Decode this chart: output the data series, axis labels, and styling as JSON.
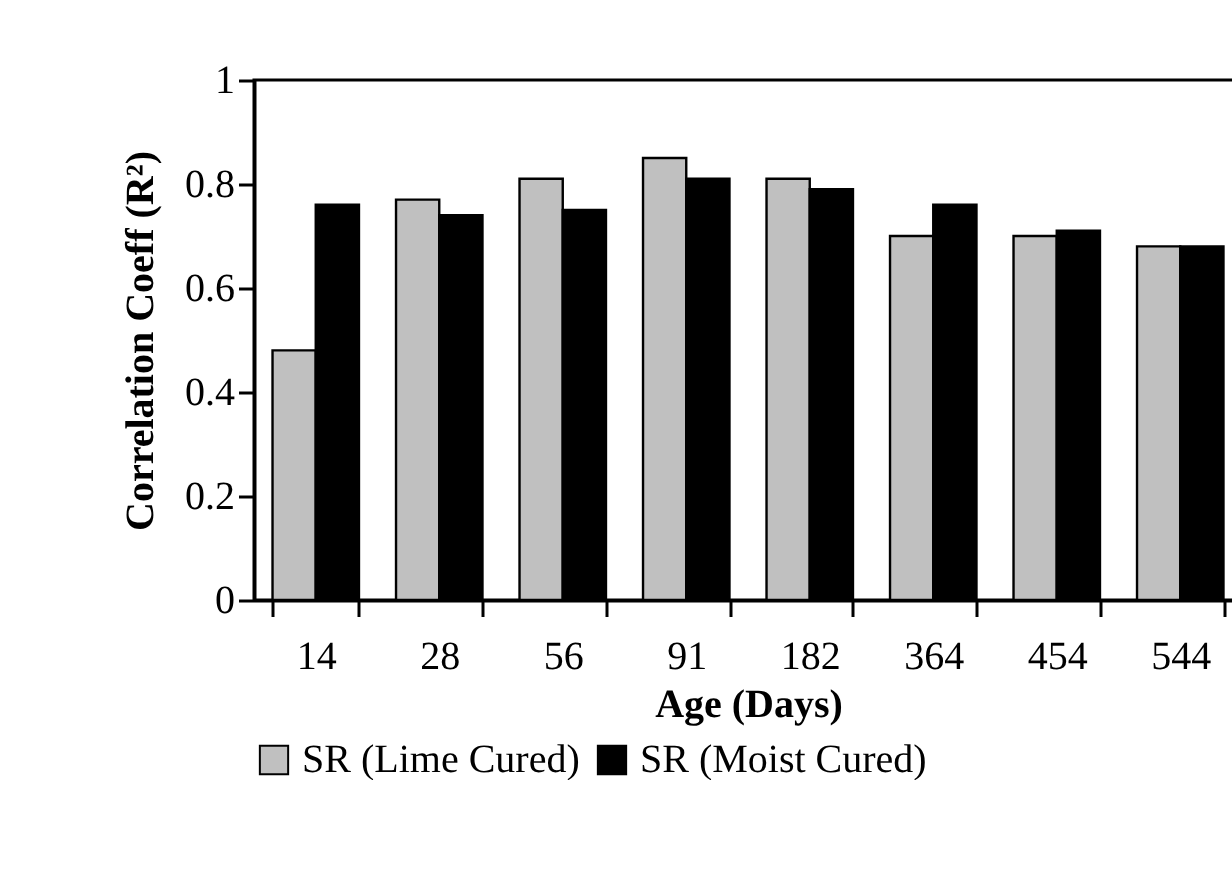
{
  "chart_data": {
    "type": "bar",
    "xlabel": "Age (Days)",
    "ylabel": "Correlation Coeff (R²)",
    "categories": [
      "14",
      "28",
      "56",
      "91",
      "182",
      "364",
      "454",
      "544"
    ],
    "series": [
      {
        "name": "SR (Lime Cured)",
        "color": "#c0c0c0",
        "values": [
          0.48,
          0.77,
          0.81,
          0.85,
          0.81,
          0.7,
          0.7,
          0.68
        ]
      },
      {
        "name": "SR (Moist Cured)",
        "color": "#000000",
        "values": [
          0.76,
          0.74,
          0.75,
          0.81,
          0.79,
          0.76,
          0.71,
          0.68
        ]
      }
    ],
    "ylim": [
      0,
      1
    ],
    "yticks": [
      0,
      0.2,
      0.4,
      0.6,
      0.8,
      1
    ],
    "grid": false,
    "legend": "bottom"
  }
}
